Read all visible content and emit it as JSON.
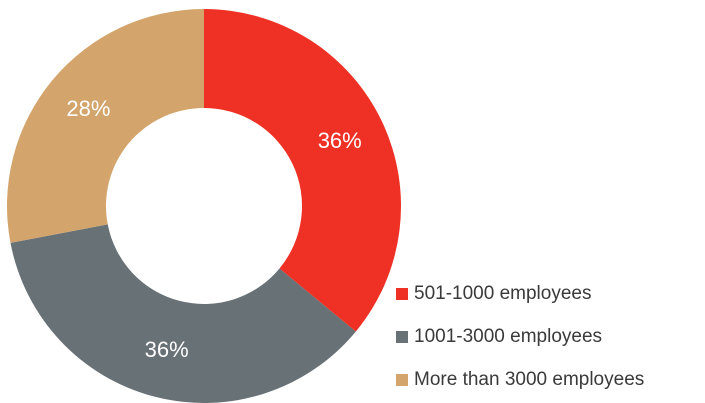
{
  "chart_data": {
    "type": "pie",
    "variant": "donut",
    "title": "",
    "categories": [
      "501-1000 employees",
      "1001-3000 employees",
      "More than 3000 employees"
    ],
    "values": [
      36,
      36,
      28
    ],
    "data_labels": [
      "36%",
      "36%",
      "28%"
    ],
    "colors": [
      "#ee3124",
      "#687176",
      "#d3a46b"
    ],
    "legend_position": "bottom-right",
    "start_angle": "12 o'clock",
    "direction": "clockwise"
  }
}
